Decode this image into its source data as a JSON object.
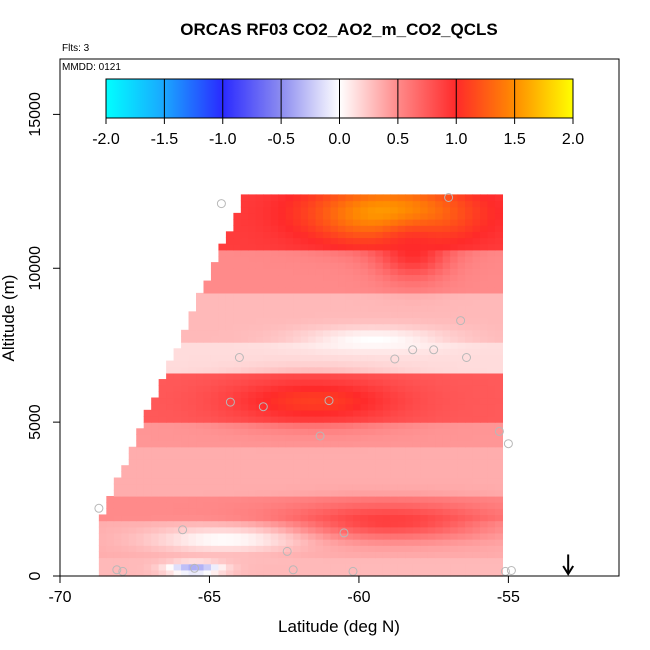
{
  "chart_data": {
    "type": "heatmap",
    "title": "ORCAS RF03 CO2_AO2_m_CO2_QCLS",
    "flights_label": "Flts: 3",
    "date_label": "MMDD: 0121",
    "xlabel": "Latitude (deg N)",
    "ylabel": "Altitude (m)",
    "xlim": [
      -70,
      -51.3
    ],
    "ylim": [
      0,
      16800
    ],
    "x_ticks": [
      "-70",
      "-65",
      "-60",
      "-55"
    ],
    "y_ticks": [
      "0",
      "5000",
      "10000",
      "15000"
    ],
    "colorbar": {
      "min": -2.0,
      "max": 2.0,
      "tick_labels": [
        "-2.0",
        "-1.5",
        "-1.0",
        "-0.5",
        "0.0",
        "0.5",
        "1.0",
        "1.5",
        "2.0"
      ],
      "stops": [
        {
          "v": -2.0,
          "color": "#00ffff"
        },
        {
          "v": -1.5,
          "color": "#1aa6ff"
        },
        {
          "v": -1.0,
          "color": "#2a2aff"
        },
        {
          "v": -0.5,
          "color": "#8c8cf0"
        },
        {
          "v": 0.0,
          "color": "#ffffff"
        },
        {
          "v": 0.5,
          "color": "#ff8a8a"
        },
        {
          "v": 1.0,
          "color": "#ff2a2a"
        },
        {
          "v": 1.5,
          "color": "#ff8c00"
        },
        {
          "v": 2.0,
          "color": "#ffff00"
        }
      ]
    },
    "field_extent": {
      "lat_min": -68.7,
      "lat_max": -55.2,
      "alt_min": 0,
      "alt_max": 12400,
      "left_edge_lat_at_top": -63.8
    },
    "field_bands": [
      {
        "alt_min": 0,
        "alt_max": 600,
        "value": 0.3
      },
      {
        "alt_min": 600,
        "alt_max": 1800,
        "value": 0.35
      },
      {
        "alt_min": 1800,
        "alt_max": 2600,
        "value": 0.5
      },
      {
        "alt_min": 2600,
        "alt_max": 4200,
        "value": 0.35
      },
      {
        "alt_min": 4200,
        "alt_max": 5100,
        "value": 0.45
      },
      {
        "alt_min": 5100,
        "alt_max": 6600,
        "value": 0.75
      },
      {
        "alt_min": 6600,
        "alt_max": 7600,
        "value": 0.15
      },
      {
        "alt_min": 7600,
        "alt_max": 9200,
        "value": 0.3
      },
      {
        "alt_min": 9200,
        "alt_max": 10600,
        "value": 0.5
      },
      {
        "alt_min": 10600,
        "alt_max": 12400,
        "value": 0.9
      }
    ],
    "field_features": [
      {
        "lat": -61.5,
        "alt": 5700,
        "value": 1.1,
        "lat_radius": 2.8,
        "alt_radius": 700
      },
      {
        "lat": -59.0,
        "alt": 11800,
        "value": 1.6,
        "lat_radius": 2.6,
        "alt_radius": 900
      },
      {
        "lat": -58.2,
        "alt": 10600,
        "value": 1.0,
        "lat_radius": 1.2,
        "alt_radius": 900
      },
      {
        "lat": -59.0,
        "alt": 1800,
        "value": 0.9,
        "lat_radius": 3.5,
        "alt_radius": 600
      },
      {
        "lat": -64.5,
        "alt": 1200,
        "value": 0.0,
        "lat_radius": 2.5,
        "alt_radius": 400
      },
      {
        "lat": -59.5,
        "alt": 7700,
        "value": 0.0,
        "lat_radius": 2.5,
        "alt_radius": 400
      },
      {
        "lat": -65.5,
        "alt": 250,
        "value": -0.4,
        "lat_radius": 0.9,
        "alt_radius": 200
      }
    ],
    "sample_points": [
      {
        "lat": -64.6,
        "alt": 12100
      },
      {
        "lat": -57.0,
        "alt": 12300
      },
      {
        "lat": -56.6,
        "alt": 8300
      },
      {
        "lat": -56.4,
        "alt": 7100
      },
      {
        "lat": -57.5,
        "alt": 7350
      },
      {
        "lat": -58.2,
        "alt": 7350
      },
      {
        "lat": -58.8,
        "alt": 7050
      },
      {
        "lat": -64.0,
        "alt": 7100
      },
      {
        "lat": -64.3,
        "alt": 5650
      },
      {
        "lat": -63.2,
        "alt": 5500
      },
      {
        "lat": -61.0,
        "alt": 5700
      },
      {
        "lat": -61.3,
        "alt": 4550
      },
      {
        "lat": -55.3,
        "alt": 4700
      },
      {
        "lat": -55.0,
        "alt": 4300
      },
      {
        "lat": -68.7,
        "alt": 2200
      },
      {
        "lat": -65.9,
        "alt": 1500
      },
      {
        "lat": -60.5,
        "alt": 1400
      },
      {
        "lat": -62.4,
        "alt": 800
      },
      {
        "lat": -62.2,
        "alt": 200
      },
      {
        "lat": -60.2,
        "alt": 150
      },
      {
        "lat": -65.5,
        "alt": 250
      },
      {
        "lat": -68.1,
        "alt": 200
      },
      {
        "lat": -67.9,
        "alt": 150
      },
      {
        "lat": -54.9,
        "alt": 180
      },
      {
        "lat": -55.1,
        "alt": 150
      }
    ],
    "arrow_marker": {
      "lat": -53.0,
      "alt_top": 700,
      "alt_bottom": 0
    }
  }
}
